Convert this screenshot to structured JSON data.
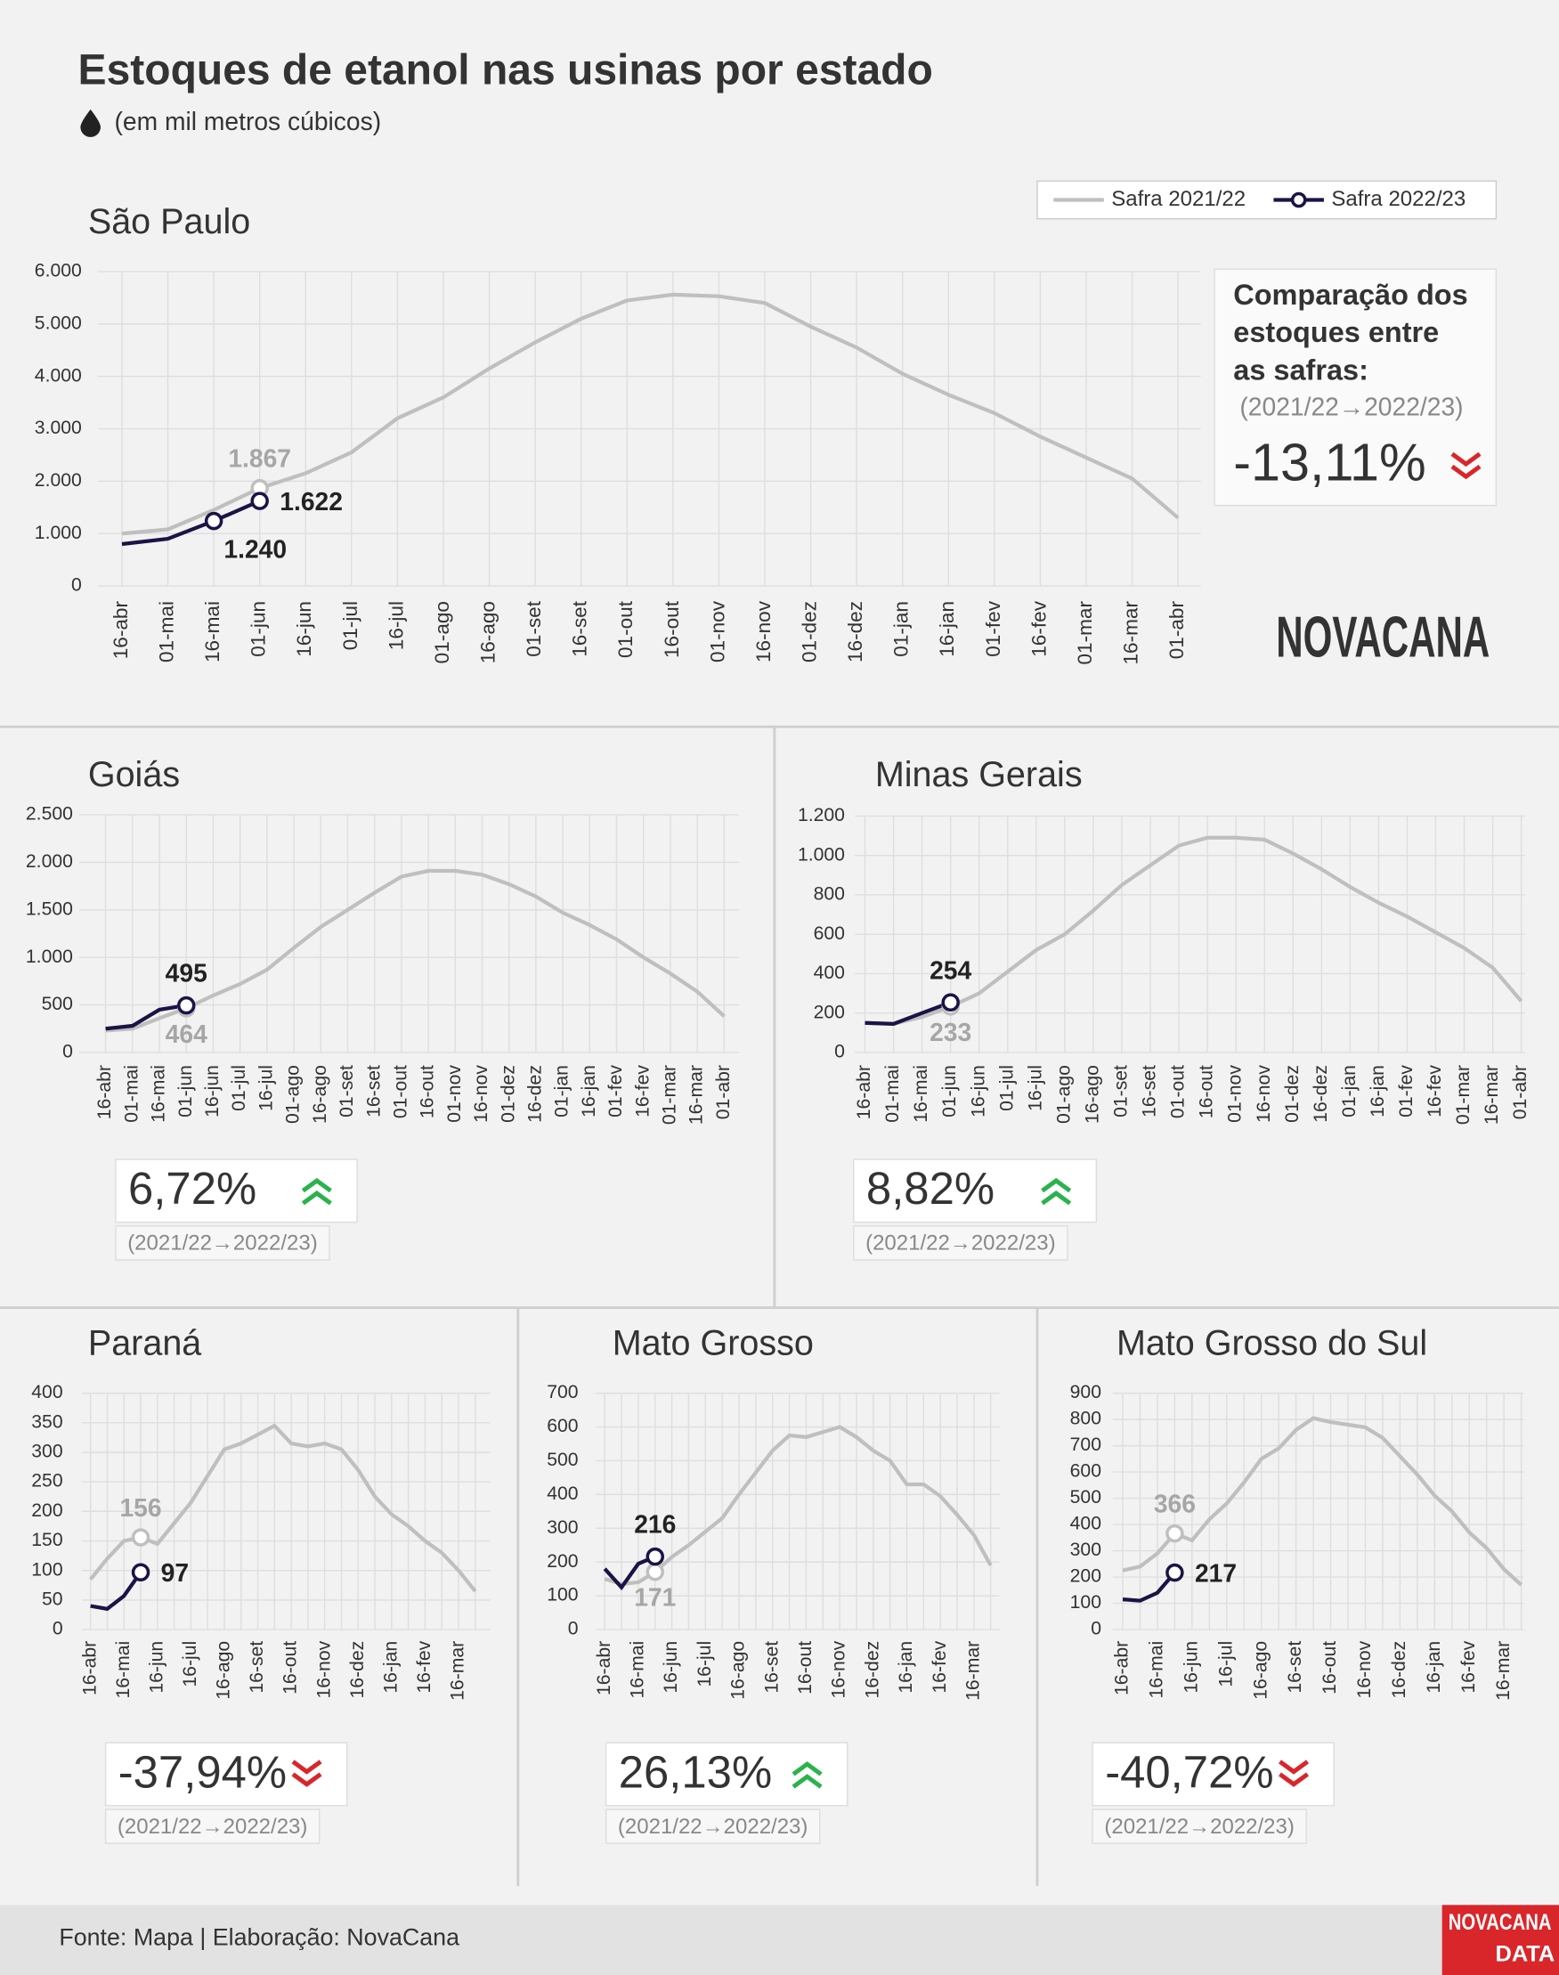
{
  "title": "Estoques de etanol nas usinas por estado",
  "subtitle": "(em mil metros cúbicos)",
  "source": "Fonte: Mapa | Elaboração: NovaCana",
  "logo": "NOVACANA",
  "logo_data": [
    "NOVACANA",
    "DATA"
  ],
  "chart_data": [
    {
      "type": "line",
      "title": "São Paulo",
      "categories": [
        "16-abr",
        "01-mai",
        "16-mai",
        "01-jun",
        "16-jun",
        "01-jul",
        "16-jul",
        "01-ago",
        "16-ago",
        "01-set",
        "16-set",
        "01-out",
        "16-out",
        "01-nov",
        "16-nov",
        "01-dez",
        "16-dez",
        "01-jan",
        "16-jan",
        "01-fev",
        "16-fev",
        "01-mar",
        "16-mar",
        "01-abr"
      ],
      "series": [
        {
          "name": "Safra 2021/22",
          "color": "#bfbfbf",
          "values": [
            1000,
            1080,
            1450,
            1867,
            2150,
            2550,
            3200,
            3600,
            4150,
            4650,
            5100,
            5450,
            5560,
            5530,
            5400,
            4950,
            4550,
            4050,
            3650,
            3300,
            2850,
            2450,
            2050,
            1300
          ],
          "value_labels": [
            null,
            null,
            null,
            "1.867",
            null,
            null,
            null,
            null,
            null,
            null,
            null,
            null,
            null,
            null,
            null,
            null,
            null,
            null,
            null,
            null,
            null,
            null,
            null,
            null
          ]
        },
        {
          "name": "Safra 2022/23",
          "color": "#1a1446",
          "values": [
            800,
            900,
            1240,
            1622,
            null,
            null,
            null,
            null,
            null,
            null,
            null,
            null,
            null,
            null,
            null,
            null,
            null,
            null,
            null,
            null,
            null,
            null,
            null,
            null
          ],
          "value_labels": [
            null,
            null,
            "1.240",
            "1.622",
            null,
            null,
            null,
            null,
            null,
            null,
            null,
            null,
            null,
            null,
            null,
            null,
            null,
            null,
            null,
            null,
            null,
            null,
            null,
            null
          ]
        }
      ],
      "ylim": [
        0,
        6000
      ],
      "yticks": [
        0,
        {
          "value": 1000,
          "label": "1.000"
        },
        {
          "value": 2000,
          "label": "2.000"
        },
        {
          "value": 3000,
          "label": "3.000"
        },
        {
          "value": 4000,
          "label": "4.000"
        },
        {
          "value": 5000,
          "label": "5.000"
        },
        {
          "value": 6000,
          "label": "6.000"
        }
      ],
      "grid": true,
      "legend": "top-right",
      "comparison_title": [
        "Comparação dos",
        "estoques entre",
        "as safras:"
      ],
      "change": "-13,11%",
      "change_note": "(2021/22→2022/23)"
    },
    {
      "type": "line",
      "title": "Goiás",
      "categories": [
        "16-abr",
        "01-mai",
        "16-mai",
        "01-jun",
        "16-jun",
        "01-jul",
        "16-jul",
        "01-ago",
        "16-ago",
        "01-set",
        "16-set",
        "01-out",
        "16-out",
        "01-nov",
        "16-nov",
        "01-dez",
        "16-dez",
        "01-jan",
        "16-jan",
        "01-fev",
        "16-fev",
        "01-mar",
        "16-mar",
        "01-abr"
      ],
      "series": [
        {
          "color": "#bfbfbf",
          "values": [
            230,
            250,
            360,
            464,
            600,
            720,
            870,
            1100,
            1320,
            1500,
            1680,
            1850,
            1910,
            1910,
            1870,
            1770,
            1640,
            1470,
            1340,
            1190,
            1000,
            830,
            640,
            380
          ],
          "value_labels": [
            null,
            null,
            null,
            "464",
            null,
            null,
            null,
            null,
            null,
            null,
            null,
            null,
            null,
            null,
            null,
            null,
            null,
            null,
            null,
            null,
            null,
            null,
            null,
            null
          ]
        },
        {
          "color": "#1a1446",
          "values": [
            250,
            280,
            450,
            495,
            null,
            null,
            null,
            null,
            null,
            null,
            null,
            null,
            null,
            null,
            null,
            null,
            null,
            null,
            null,
            null,
            null,
            null,
            null,
            null
          ],
          "value_labels": [
            null,
            null,
            null,
            "495",
            null,
            null,
            null,
            null,
            null,
            null,
            null,
            null,
            null,
            null,
            null,
            null,
            null,
            null,
            null,
            null,
            null,
            null,
            null,
            null
          ]
        }
      ],
      "ylim": [
        0,
        2500
      ],
      "yticks": [
        0,
        500,
        {
          "value": 1000,
          "label": "1.000"
        },
        {
          "value": 1500,
          "label": "1.500"
        },
        {
          "value": 2000,
          "label": "2.000"
        },
        {
          "value": 2500,
          "label": "2.500"
        }
      ],
      "grid": true,
      "change": "6,72%",
      "change_note": "(2021/22→2022/23)"
    },
    {
      "type": "line",
      "title": "Minas Gerais",
      "categories": [
        "16-abr",
        "01-mai",
        "16-mai",
        "01-jun",
        "16-jun",
        "01-jul",
        "16-jul",
        "01-ago",
        "16-ago",
        "01-set",
        "16-set",
        "01-out",
        "16-out",
        "01-nov",
        "16-nov",
        "01-dez",
        "16-dez",
        "01-jan",
        "16-jan",
        "01-fev",
        "16-fev",
        "01-mar",
        "16-mar",
        "01-abr"
      ],
      "series": [
        {
          "color": "#bfbfbf",
          "values": [
            150,
            145,
            180,
            233,
            300,
            410,
            520,
            600,
            720,
            850,
            950,
            1050,
            1090,
            1090,
            1080,
            1010,
            930,
            840,
            760,
            690,
            610,
            530,
            430,
            260
          ],
          "value_labels": [
            null,
            null,
            null,
            "233",
            null,
            null,
            null,
            null,
            null,
            null,
            null,
            null,
            null,
            null,
            null,
            null,
            null,
            null,
            null,
            null,
            null,
            null,
            null,
            null
          ]
        },
        {
          "color": "#1a1446",
          "values": [
            150,
            145,
            200,
            254,
            null,
            null,
            null,
            null,
            null,
            null,
            null,
            null,
            null,
            null,
            null,
            null,
            null,
            null,
            null,
            null,
            null,
            null,
            null,
            null
          ],
          "value_labels": [
            null,
            null,
            null,
            "254",
            null,
            null,
            null,
            null,
            null,
            null,
            null,
            null,
            null,
            null,
            null,
            null,
            null,
            null,
            null,
            null,
            null,
            null,
            null,
            null
          ]
        }
      ],
      "ylim": [
        0,
        1200
      ],
      "yticks": [
        0,
        200,
        400,
        600,
        800,
        {
          "value": 1000,
          "label": "1.000"
        },
        {
          "value": 1200,
          "label": "1.200"
        }
      ],
      "grid": true,
      "change": "8,82%",
      "change_note": "(2021/22→2022/23)"
    },
    {
      "type": "line",
      "title": "Paraná",
      "categories": [
        "16-abr",
        null,
        "16-mai",
        null,
        "16-jun",
        null,
        "16-jul",
        null,
        "16-ago",
        null,
        "16-set",
        null,
        "16-out",
        null,
        "16-nov",
        null,
        "16-dez",
        null,
        "16-jan",
        null,
        "16-fev",
        null,
        "16-mar",
        null
      ],
      "series": [
        {
          "color": "#bfbfbf",
          "values": [
            85,
            120,
            150,
            156,
            145,
            180,
            215,
            260,
            305,
            315,
            330,
            345,
            315,
            310,
            315,
            305,
            270,
            225,
            195,
            175,
            150,
            130,
            100,
            65
          ],
          "value_labels": [
            null,
            null,
            null,
            "156",
            null,
            null,
            null,
            null,
            null,
            null,
            null,
            null,
            null,
            null,
            null,
            null,
            null,
            null,
            null,
            null,
            null,
            null,
            null,
            null
          ]
        },
        {
          "color": "#1a1446",
          "values": [
            40,
            35,
            57,
            97,
            null,
            null,
            null,
            null,
            null,
            null,
            null,
            null,
            null,
            null,
            null,
            null,
            null,
            null,
            null,
            null,
            null,
            null,
            null,
            null
          ],
          "value_labels": [
            null,
            null,
            null,
            "97",
            null,
            null,
            null,
            null,
            null,
            null,
            null,
            null,
            null,
            null,
            null,
            null,
            null,
            null,
            null,
            null,
            null,
            null,
            null,
            null
          ]
        }
      ],
      "ylim": [
        0,
        400
      ],
      "yticks": [
        0,
        50,
        100,
        150,
        200,
        250,
        300,
        350,
        400
      ],
      "grid": true,
      "change": "-37,94%",
      "change_note": "(2021/22→2022/23)"
    },
    {
      "type": "line",
      "title": "Mato Grosso",
      "categories": [
        "16-abr",
        null,
        "16-mai",
        null,
        "16-jun",
        null,
        "16-jul",
        null,
        "16-ago",
        null,
        "16-set",
        null,
        "16-out",
        null,
        "16-nov",
        null,
        "16-dez",
        null,
        "16-jan",
        null,
        "16-fev",
        null,
        "16-mar",
        null
      ],
      "series": [
        {
          "color": "#bfbfbf",
          "values": [
            150,
            135,
            140,
            171,
            215,
            250,
            290,
            330,
            400,
            465,
            530,
            575,
            570,
            585,
            600,
            570,
            530,
            500,
            430,
            430,
            395,
            340,
            280,
            190
          ],
          "value_labels": [
            null,
            null,
            null,
            "171",
            null,
            null,
            null,
            null,
            null,
            null,
            null,
            null,
            null,
            null,
            null,
            null,
            null,
            null,
            null,
            null,
            null,
            null,
            null,
            null
          ]
        },
        {
          "color": "#1a1446",
          "values": [
            180,
            125,
            195,
            216,
            null,
            null,
            null,
            null,
            null,
            null,
            null,
            null,
            null,
            null,
            null,
            null,
            null,
            null,
            null,
            null,
            null,
            null,
            null,
            null
          ],
          "value_labels": [
            null,
            null,
            null,
            "216",
            null,
            null,
            null,
            null,
            null,
            null,
            null,
            null,
            null,
            null,
            null,
            null,
            null,
            null,
            null,
            null,
            null,
            null,
            null,
            null
          ]
        }
      ],
      "ylim": [
        0,
        700
      ],
      "yticks": [
        0,
        100,
        200,
        300,
        400,
        500,
        600,
        700
      ],
      "grid": true,
      "change": "26,13%",
      "change_note": "(2021/22→2022/23)"
    },
    {
      "type": "line",
      "title": "Mato Grosso do Sul",
      "categories": [
        "16-abr",
        null,
        "16-mai",
        null,
        "16-jun",
        null,
        "16-jul",
        null,
        "16-ago",
        null,
        "16-set",
        null,
        "16-out",
        null,
        "16-nov",
        null,
        "16-dez",
        null,
        "16-jan",
        null,
        "16-fev",
        null,
        "16-mar",
        null
      ],
      "series": [
        {
          "color": "#bfbfbf",
          "values": [
            225,
            240,
            290,
            366,
            340,
            420,
            480,
            560,
            650,
            690,
            760,
            805,
            790,
            780,
            770,
            730,
            660,
            590,
            510,
            450,
            370,
            310,
            230,
            170
          ],
          "value_labels": [
            null,
            null,
            null,
            "366",
            null,
            null,
            null,
            null,
            null,
            null,
            null,
            null,
            null,
            null,
            null,
            null,
            null,
            null,
            null,
            null,
            null,
            null,
            null,
            null
          ]
        },
        {
          "color": "#1a1446",
          "values": [
            115,
            110,
            140,
            217,
            null,
            null,
            null,
            null,
            null,
            null,
            null,
            null,
            null,
            null,
            null,
            null,
            null,
            null,
            null,
            null,
            null,
            null,
            null,
            null
          ],
          "value_labels": [
            null,
            null,
            null,
            "217",
            null,
            null,
            null,
            null,
            null,
            null,
            null,
            null,
            null,
            null,
            null,
            null,
            null,
            null,
            null,
            null,
            null,
            null,
            null,
            null
          ]
        }
      ],
      "ylim": [
        0,
        900
      ],
      "yticks": [
        0,
        100,
        200,
        300,
        400,
        500,
        600,
        700,
        800,
        900
      ],
      "grid": true,
      "change": "-40,72%",
      "change_note": "(2021/22→2022/23)"
    }
  ]
}
